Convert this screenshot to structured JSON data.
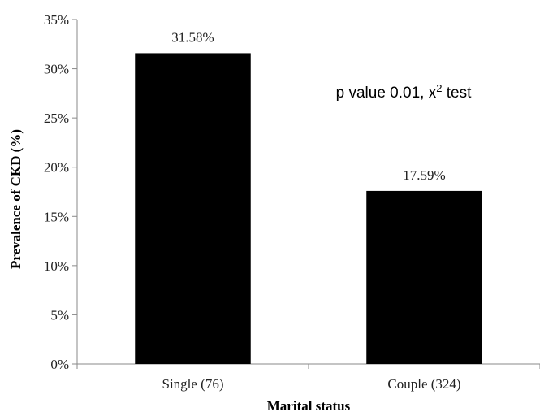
{
  "chart_data": {
    "type": "bar",
    "categories": [
      "Single (76)",
      "Couple (324)"
    ],
    "values": [
      31.58,
      17.59
    ],
    "data_labels": [
      "31.58%",
      "17.59%"
    ],
    "xlabel": "Marital status",
    "ylabel": "Prevalence of CKD (%)",
    "ylim": [
      0,
      35
    ],
    "yticks": [
      0,
      5,
      10,
      15,
      20,
      25,
      30,
      35
    ],
    "ytick_labels": [
      "0%",
      "5%",
      "10%",
      "15%",
      "20%",
      "25%",
      "30%",
      "35%"
    ],
    "annotation": {
      "prefix": "p value 0.01, x",
      "superscript": "2",
      "suffix": " test"
    },
    "bar_color": "#000000",
    "grid": false,
    "legend": "none"
  }
}
